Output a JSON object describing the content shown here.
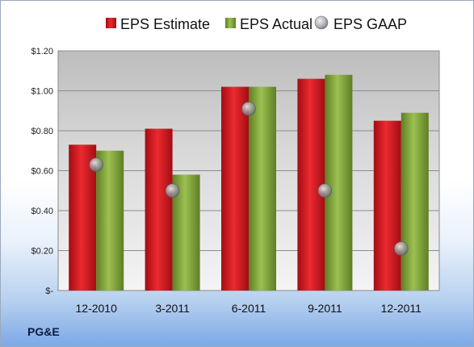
{
  "company_label": "PG&E",
  "chart_data": {
    "type": "bar",
    "title": "",
    "xlabel": "",
    "ylabel": "",
    "categories": [
      "12-2010",
      "3-2011",
      "6-2011",
      "9-2011",
      "12-2011"
    ],
    "ylim": [
      0,
      1.2
    ],
    "yticks": [
      0,
      0.2,
      0.4,
      0.6,
      0.8,
      1.0,
      1.2
    ],
    "ytick_labels": [
      "$-",
      "$0.20",
      "$0.40",
      "$0.60",
      "$0.80",
      "$1.00",
      "$1.20"
    ],
    "grid": true,
    "legend_position": "top",
    "series": [
      {
        "name": "EPS Estimate",
        "type": "bar",
        "color": "#d0141c",
        "values": [
          0.73,
          0.81,
          1.02,
          1.06,
          0.85
        ]
      },
      {
        "name": "EPS Actual",
        "type": "bar",
        "color": "#7ea33a",
        "values": [
          0.7,
          0.58,
          1.02,
          1.08,
          0.89
        ]
      },
      {
        "name": "EPS GAAP",
        "type": "marker",
        "color": "#9ea0a6",
        "values": [
          0.63,
          0.5,
          0.91,
          0.5,
          0.21
        ]
      }
    ]
  }
}
